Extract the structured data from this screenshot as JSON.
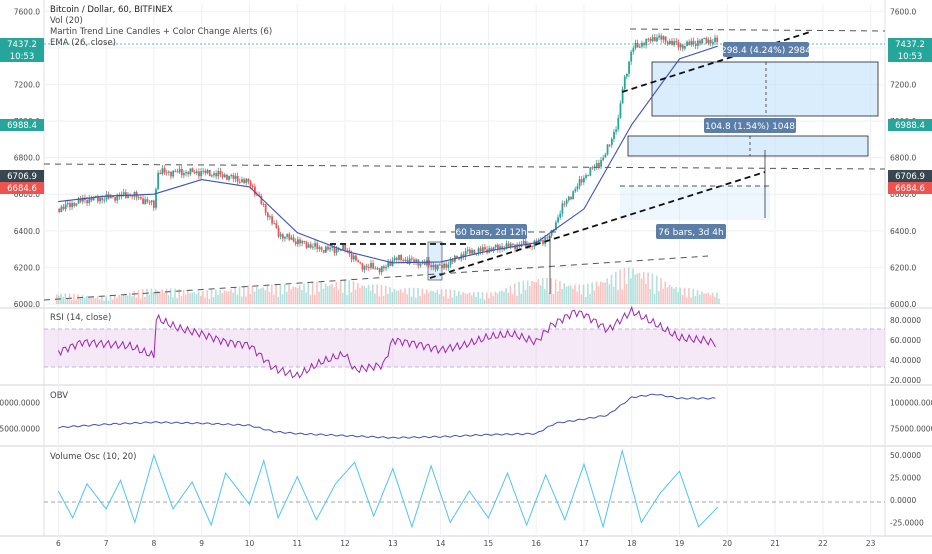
{
  "colors": {
    "up": "#26a69a",
    "down": "#ef5350",
    "ema": "#3f51b5",
    "rsi": "#9c27b0",
    "obv": "#3f51b5",
    "volosc": "#4fc3f7",
    "rect_fill": "#bbdefb",
    "grid": "#eef0f3",
    "axis_text": "#4a4a4a",
    "current_price_bg": "#26a69a"
  },
  "header": {
    "title": "Bitcoin / Dollar, 60, BITFINEX",
    "indicators": [
      "Vol (20)",
      "Martin Trend Line Candles + Color Change Alerts (6)",
      "EMA (26, close)"
    ]
  },
  "left_tags": {
    "price": "7437.2",
    "time": "10:53",
    "mid": "6988.4",
    "lower_a": "6706.9",
    "lower_b": "6684.6"
  },
  "right_tags": {
    "price": "7437.2",
    "time": "10:53",
    "mid": "6988.4",
    "lower_a": "6706.9",
    "lower_b": "6684.6"
  },
  "annotations": {
    "measure_top": "298.4 (4.24%) 2984",
    "measure_mid": "104.8 (1.54%) 1048",
    "bars_left": "60 bars, 2d 12h",
    "bars_right": "76 bars, 3d 4h"
  },
  "panes": {
    "rsi_label": "RSI (14, close)",
    "obv_label": "OBV",
    "volosc_label": "Volume Osc (10, 20)"
  },
  "chart_data": [
    {
      "type": "candlestick",
      "title": "Bitcoin / Dollar, 60, BITFINEX",
      "x_ticks": [
        "6",
        "7",
        "8",
        "9",
        "10",
        "11",
        "12",
        "13",
        "14",
        "15",
        "16",
        "17",
        "18",
        "19",
        "20",
        "21",
        "22",
        "23"
      ],
      "y_ticks": [
        "7600.0",
        "7400.0",
        "7200.0",
        "7000.0",
        "6800.0",
        "6600.0",
        "6400.0",
        "6200.0",
        "6000.0"
      ],
      "ylim": [
        6000,
        7640
      ],
      "xlim": [
        5.7,
        23.3
      ],
      "current_price": 7437.2,
      "close_path": [
        [
          6.0,
          6520
        ],
        [
          6.5,
          6570
        ],
        [
          7.0,
          6580
        ],
        [
          7.5,
          6600
        ],
        [
          8.0,
          6540
        ],
        [
          8.05,
          6720
        ],
        [
          8.5,
          6720
        ],
        [
          9.0,
          6720
        ],
        [
          9.5,
          6700
        ],
        [
          10.0,
          6660
        ],
        [
          10.3,
          6520
        ],
        [
          10.6,
          6380
        ],
        [
          11.0,
          6340
        ],
        [
          11.5,
          6300
        ],
        [
          12.0,
          6300
        ],
        [
          12.3,
          6210
        ],
        [
          12.8,
          6190
        ],
        [
          13.0,
          6250
        ],
        [
          13.5,
          6230
        ],
        [
          14.0,
          6200
        ],
        [
          14.5,
          6280
        ],
        [
          15.0,
          6300
        ],
        [
          15.5,
          6320
        ],
        [
          16.0,
          6330
        ],
        [
          16.3,
          6380
        ],
        [
          16.5,
          6520
        ],
        [
          17.0,
          6700
        ],
        [
          17.4,
          6800
        ],
        [
          17.7,
          7000
        ],
        [
          17.8,
          7200
        ],
        [
          18.0,
          7400
        ],
        [
          18.5,
          7460
        ],
        [
          19.0,
          7410
        ],
        [
          19.5,
          7440
        ],
        [
          19.8,
          7437
        ]
      ],
      "ema_26": [
        [
          6.0,
          6560
        ],
        [
          7.0,
          6590
        ],
        [
          8.0,
          6600
        ],
        [
          9.0,
          6680
        ],
        [
          10.0,
          6640
        ],
        [
          11.0,
          6390
        ],
        [
          12.0,
          6290
        ],
        [
          13.0,
          6225
        ],
        [
          14.0,
          6230
        ],
        [
          15.0,
          6290
        ],
        [
          16.0,
          6335
        ],
        [
          17.0,
          6520
        ],
        [
          18.0,
          6980
        ],
        [
          19.0,
          7340
        ],
        [
          19.8,
          7410
        ]
      ],
      "volume": [
        [
          6.0,
          120
        ],
        [
          7.0,
          80
        ],
        [
          8.0,
          180
        ],
        [
          9.0,
          140
        ],
        [
          10.0,
          200
        ],
        [
          11.0,
          220
        ],
        [
          12.0,
          260
        ],
        [
          13.0,
          180
        ],
        [
          14.0,
          160
        ],
        [
          15.0,
          120
        ],
        [
          16.0,
          300
        ],
        [
          17.0,
          200
        ],
        [
          18.0,
          420
        ],
        [
          19.0,
          180
        ],
        [
          19.8,
          120
        ]
      ]
    },
    {
      "type": "line",
      "title": "RSI (14, close)",
      "y_ticks": [
        "80.0000",
        "60.0000",
        "40.0000",
        "20.0000"
      ],
      "ylim": [
        16,
        90
      ],
      "band": [
        30,
        70
      ],
      "series": [
        {
          "name": "RSI (14, close)",
          "points": [
            [
              6.0,
              48
            ],
            [
              6.5,
              58
            ],
            [
              7.0,
              56
            ],
            [
              7.5,
              54
            ],
            [
              8.0,
              44
            ],
            [
              8.05,
              82
            ],
            [
              8.5,
              72
            ],
            [
              9.0,
              66
            ],
            [
              9.5,
              58
            ],
            [
              10.0,
              55
            ],
            [
              10.5,
              32
            ],
            [
              11.0,
              24
            ],
            [
              11.5,
              38
            ],
            [
              12.0,
              46
            ],
            [
              12.2,
              30
            ],
            [
              12.8,
              35
            ],
            [
              13.0,
              60
            ],
            [
              13.5,
              56
            ],
            [
              14.0,
              50
            ],
            [
              14.5,
              55
            ],
            [
              15.0,
              63
            ],
            [
              15.5,
              66
            ],
            [
              16.0,
              58
            ],
            [
              16.3,
              74
            ],
            [
              16.8,
              88
            ],
            [
              17.0,
              86
            ],
            [
              17.5,
              70
            ],
            [
              18.0,
              89
            ],
            [
              18.5,
              76
            ],
            [
              19.0,
              62
            ],
            [
              19.5,
              60
            ],
            [
              19.8,
              56
            ]
          ]
        }
      ]
    },
    {
      "type": "line",
      "title": "OBV",
      "y_ticks": [
        "100000.0000",
        "75000.0000"
      ],
      "ylim": [
        60000,
        115000
      ],
      "series": [
        {
          "name": "OBV",
          "points": [
            [
              6.0,
              76000
            ],
            [
              7.0,
              79000
            ],
            [
              8.0,
              81000
            ],
            [
              9.0,
              80000
            ],
            [
              10.0,
              78000
            ],
            [
              10.5,
              72000
            ],
            [
              11.0,
              70000
            ],
            [
              12.0,
              68000
            ],
            [
              13.0,
              66000
            ],
            [
              14.0,
              67000
            ],
            [
              15.0,
              69000
            ],
            [
              16.0,
              70000
            ],
            [
              16.4,
              80000
            ],
            [
              17.0,
              84000
            ],
            [
              17.5,
              88000
            ],
            [
              18.0,
              105000
            ],
            [
              18.5,
              108000
            ],
            [
              19.0,
              104000
            ],
            [
              19.8,
              104000
            ]
          ]
        }
      ]
    },
    {
      "type": "line",
      "title": "Volume Osc (10, 20)",
      "y_ticks": [
        "50.0000",
        "25.0000",
        "0.0000",
        "-25.0000"
      ],
      "ylim": [
        -38,
        58
      ],
      "series": [
        {
          "name": "Volume Osc (10, 20)",
          "points": [
            [
              6.0,
              10
            ],
            [
              6.3,
              -20
            ],
            [
              6.6,
              18
            ],
            [
              7.0,
              -10
            ],
            [
              7.3,
              22
            ],
            [
              7.6,
              -25
            ],
            [
              8.0,
              50
            ],
            [
              8.4,
              -10
            ],
            [
              8.8,
              20
            ],
            [
              9.2,
              -28
            ],
            [
              9.5,
              30
            ],
            [
              10.0,
              -5
            ],
            [
              10.3,
              44
            ],
            [
              10.6,
              -20
            ],
            [
              11.0,
              26
            ],
            [
              11.4,
              -22
            ],
            [
              11.8,
              18
            ],
            [
              12.2,
              42
            ],
            [
              12.6,
              -18
            ],
            [
              13.0,
              35
            ],
            [
              13.4,
              -30
            ],
            [
              13.8,
              38
            ],
            [
              14.2,
              -25
            ],
            [
              14.6,
              10
            ],
            [
              15.0,
              -20
            ],
            [
              15.4,
              30
            ],
            [
              15.8,
              -28
            ],
            [
              16.2,
              28
            ],
            [
              16.6,
              -22
            ],
            [
              17.0,
              40
            ],
            [
              17.4,
              -30
            ],
            [
              17.8,
              55
            ],
            [
              18.2,
              -25
            ],
            [
              18.6,
              8
            ],
            [
              19.0,
              32
            ],
            [
              19.4,
              -30
            ],
            [
              19.8,
              -8
            ]
          ]
        }
      ]
    }
  ]
}
